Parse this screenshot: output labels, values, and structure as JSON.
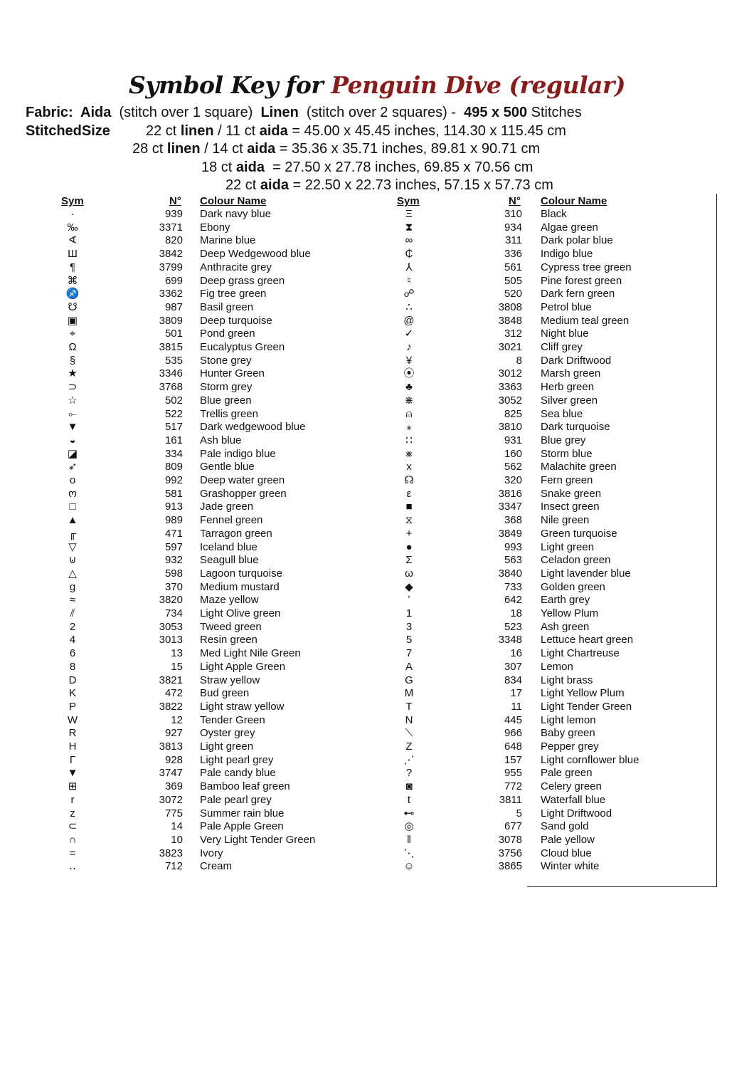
{
  "title": {
    "prefix": "Symbol Key for",
    "pattern_name": "Penguin Dive (regular)",
    "accent_color": "#8b1a1a"
  },
  "info_lines": [
    [
      {
        "t": "Fabric:  Aida",
        "b": true
      },
      {
        "t": "  (stitch over 1 square)  ",
        "b": false
      },
      {
        "t": "Linen",
        "b": true
      },
      {
        "t": "  (stitch over 2 squares) -  ",
        "b": false
      },
      {
        "t": "495 x 500",
        "b": true
      },
      {
        "t": " Stitches",
        "b": false
      }
    ],
    [
      {
        "t": "22 ct ",
        "b": false
      },
      {
        "t": "linen",
        "b": true
      },
      {
        "t": " / 11 ct ",
        "b": false
      },
      {
        "t": "aida",
        "b": true
      },
      {
        "t": " = 45.00 x 45.45 inches, 114.30 x 115.45 cm",
        "b": false
      }
    ],
    [
      {
        "t": "28 ct ",
        "b": false
      },
      {
        "t": "linen",
        "b": true
      },
      {
        "t": " / 14 ct ",
        "b": false
      },
      {
        "t": "aida",
        "b": true
      },
      {
        "t": " = 35.36 x 35.71 inches, 89.81 x 90.71 cm",
        "b": false
      }
    ],
    [
      {
        "t": "18 ct ",
        "b": false
      },
      {
        "t": "aida",
        "b": true
      },
      {
        "t": "  = 27.50 x 27.78 inches, 69.85 x 70.56 cm",
        "b": false
      }
    ],
    [
      {
        "t": "22 ct ",
        "b": false
      },
      {
        "t": "aida",
        "b": true
      },
      {
        "t": " = 22.50 x 22.73 inches, 57.15 x 57.73 cm",
        "b": false
      }
    ]
  ],
  "stitched_size_label": "StitchedSize",
  "table_headers": {
    "sym": "Sym",
    "num": "N°",
    "name": "Colour Name"
  },
  "left_column": [
    [
      "·",
      "939",
      "Dark navy blue"
    ],
    [
      "‰",
      "3371",
      "Ebony"
    ],
    [
      "∢",
      "820",
      "Marine blue"
    ],
    [
      "Ш",
      "3842",
      "Deep Wedgewood blue"
    ],
    [
      "¶",
      "3799",
      "Anthracite grey"
    ],
    [
      "⌘",
      "699",
      "Deep grass green"
    ],
    [
      "♐",
      "3362",
      "Fig tree green"
    ],
    [
      "☋",
      "987",
      "Basil green"
    ],
    [
      "▣",
      "3809",
      "Deep turquoise"
    ],
    [
      "⌖",
      "501",
      "Pond green"
    ],
    [
      "Ω",
      "3815",
      "Eucalyptus Green"
    ],
    [
      "§",
      "535",
      "Stone grey"
    ],
    [
      "★",
      "3346",
      "Hunter Green"
    ],
    [
      "⊃",
      "3768",
      "Storm grey"
    ],
    [
      "☆",
      "502",
      "Blue green"
    ],
    [
      "⟜",
      "522",
      "Trellis green"
    ],
    [
      "▼",
      "517",
      "Dark wedgewood blue"
    ],
    [
      "◒",
      "161",
      "Ash blue"
    ],
    [
      "◪",
      "334",
      "Pale indigo blue"
    ],
    [
      "➶",
      "809",
      "Gentle blue"
    ],
    [
      "o",
      "992",
      "Deep water green"
    ],
    [
      "ო",
      "581",
      "Grashopper green"
    ],
    [
      "□",
      "913",
      "Jade green"
    ],
    [
      "▲",
      "989",
      "Fennel green"
    ],
    [
      "╓",
      "471",
      "Tarragon green"
    ],
    [
      "▽",
      "597",
      "Iceland blue"
    ],
    [
      "⊍",
      "932",
      "Seagull blue"
    ],
    [
      "△",
      "598",
      "Lagoon turquoise"
    ],
    [
      "g",
      "370",
      "Medium mustard"
    ],
    [
      "≈",
      "3820",
      "Maze yellow"
    ],
    [
      "⫽",
      "734",
      "Light Olive green"
    ],
    [
      "2",
      "3053",
      "Tweed green"
    ],
    [
      "4",
      "3013",
      "Resin green"
    ],
    [
      "6",
      "13",
      "Med Light Nile Green"
    ],
    [
      "8",
      "15",
      "Light Apple Green"
    ],
    [
      "D",
      "3821",
      "Straw yellow"
    ],
    [
      "K",
      "472",
      "Bud green"
    ],
    [
      "P",
      "3822",
      "Light straw yellow"
    ],
    [
      "W",
      "12",
      "Tender Green"
    ],
    [
      "R",
      "927",
      "Oyster grey"
    ],
    [
      "H",
      "3813",
      "Light green"
    ],
    [
      "Γ",
      "928",
      "Light pearl grey"
    ],
    [
      "▼",
      "3747",
      "Pale candy blue"
    ],
    [
      "⊞",
      "369",
      "Bamboo leaf green"
    ],
    [
      "r",
      "3072",
      "Pale pearl grey"
    ],
    [
      "z",
      "775",
      "Summer rain blue"
    ],
    [
      "⊂",
      "14",
      "Pale Apple Green"
    ],
    [
      "∩",
      "10",
      "Very Light Tender Green"
    ],
    [
      "=",
      "3823",
      "Ivory"
    ],
    [
      "‥",
      "712",
      "Cream"
    ]
  ],
  "right_column": [
    [
      "Ξ",
      "310",
      "Black"
    ],
    [
      "⧗",
      "934",
      "Algae green"
    ],
    [
      "∞",
      "311",
      "Dark polar blue"
    ],
    [
      "₵",
      "336",
      "Indigo blue"
    ],
    [
      "⅄",
      "561",
      "Cypress tree green"
    ],
    [
      "♮",
      "505",
      "Pine forest green"
    ],
    [
      "☍",
      "520",
      "Dark fern green"
    ],
    [
      "∴",
      "3808",
      "Petrol blue"
    ],
    [
      "@",
      "3848",
      "Medium teal green"
    ],
    [
      "✓",
      "312",
      "Night blue"
    ],
    [
      "♪",
      "3021",
      "Cliff grey"
    ],
    [
      "¥",
      "8",
      "Dark Driftwood"
    ],
    [
      "⦿",
      "3012",
      "Marsh green"
    ],
    [
      "♣",
      "3363",
      "Herb green"
    ],
    [
      "⋇",
      "3052",
      "Silver green"
    ],
    [
      "⍝",
      "825",
      "Sea blue"
    ],
    [
      "⁎",
      "3810",
      "Dark turquoise"
    ],
    [
      "∷",
      "931",
      "Blue grey"
    ],
    [
      "⨳",
      "160",
      "Storm blue"
    ],
    [
      "x",
      "562",
      "Malachite green"
    ],
    [
      "☊",
      "320",
      "Fern green"
    ],
    [
      "ε",
      "3816",
      "Snake green"
    ],
    [
      "■",
      "3347",
      "Insect green"
    ],
    [
      "⧖",
      "368",
      "Nile green"
    ],
    [
      "+",
      "3849",
      "Green turquoise"
    ],
    [
      "●",
      "993",
      "Light green"
    ],
    [
      "Σ",
      "563",
      "Celadon green"
    ],
    [
      "ω",
      "3840",
      "Light lavender blue"
    ],
    [
      "◆",
      "733",
      "Golden green"
    ],
    [
      "ʻ",
      "642",
      "Earth grey"
    ],
    [
      "1",
      "18",
      "Yellow Plum"
    ],
    [
      "3",
      "523",
      "Ash green"
    ],
    [
      "5",
      "3348",
      "Lettuce heart green"
    ],
    [
      "7",
      "16",
      "Light Chartreuse"
    ],
    [
      "A",
      "307",
      "Lemon"
    ],
    [
      "G",
      "834",
      "Light brass"
    ],
    [
      "M",
      "17",
      "Light Yellow Plum"
    ],
    [
      "T",
      "11",
      "Light Tender Green"
    ],
    [
      "N",
      "445",
      "Light lemon"
    ],
    [
      "⟍",
      "966",
      "Baby green"
    ],
    [
      "Z",
      "648",
      "Pepper grey"
    ],
    [
      "⋰",
      "157",
      "Light cornflower blue"
    ],
    [
      "?",
      "955",
      "Pale green"
    ],
    [
      "◙",
      "772",
      "Celery green"
    ],
    [
      "t",
      "3811",
      "Waterfall blue"
    ],
    [
      "⊷",
      "5",
      "Light Driftwood"
    ],
    [
      "◎",
      "677",
      "Sand gold"
    ],
    [
      "ǁ",
      "3078",
      "Pale yellow"
    ],
    [
      "⋱",
      "3756",
      "Cloud blue"
    ],
    [
      "☺",
      "3865",
      "Winter white"
    ]
  ]
}
